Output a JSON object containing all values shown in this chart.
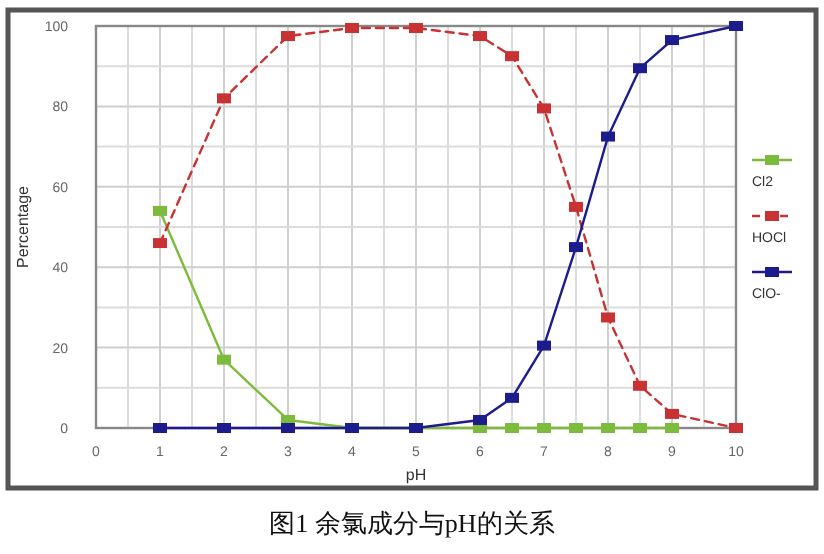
{
  "chart_data": {
    "type": "line",
    "xlabel": "pH",
    "ylabel": "Percentage",
    "annotations": [
      "图1 余氯成分与pH的关系"
    ],
    "xlim": [
      0,
      10
    ],
    "xticks": [
      0,
      1,
      2,
      3,
      4,
      5,
      6,
      7,
      8,
      9,
      10
    ],
    "ylim": [
      0,
      100
    ],
    "yticks": [
      0,
      20,
      40,
      60,
      80,
      100
    ],
    "grid": true,
    "legend": "right",
    "marker": "square",
    "series": [
      {
        "name": "Cl2",
        "color": "#7dbb3c",
        "line_style": "solid",
        "x": [
          1,
          2,
          3,
          4,
          6,
          6.5,
          7,
          7.5,
          8,
          8.5,
          9
        ],
        "values": [
          54,
          17,
          2,
          0,
          0,
          0,
          0,
          0,
          0,
          0,
          0
        ]
      },
      {
        "name": "HOCl",
        "color": "#c83232",
        "line_style": "dashed",
        "x": [
          1,
          2,
          3,
          4,
          5,
          6,
          6.5,
          7,
          7.5,
          8,
          8.5,
          9,
          10
        ],
        "values": [
          46,
          82,
          97.5,
          99.5,
          99.5,
          97.5,
          92.5,
          79.5,
          55,
          27.5,
          10.5,
          3.5,
          0
        ]
      },
      {
        "name": "ClO-",
        "color": "#1c1c8c",
        "line_style": "solid",
        "x": [
          1,
          2,
          3,
          4,
          5,
          6,
          6.5,
          7,
          7.5,
          8,
          8.5,
          9,
          10
        ],
        "values": [
          0,
          0,
          0,
          0,
          0,
          2,
          7.5,
          20.5,
          45,
          72.5,
          89.5,
          96.5,
          100
        ]
      }
    ]
  }
}
